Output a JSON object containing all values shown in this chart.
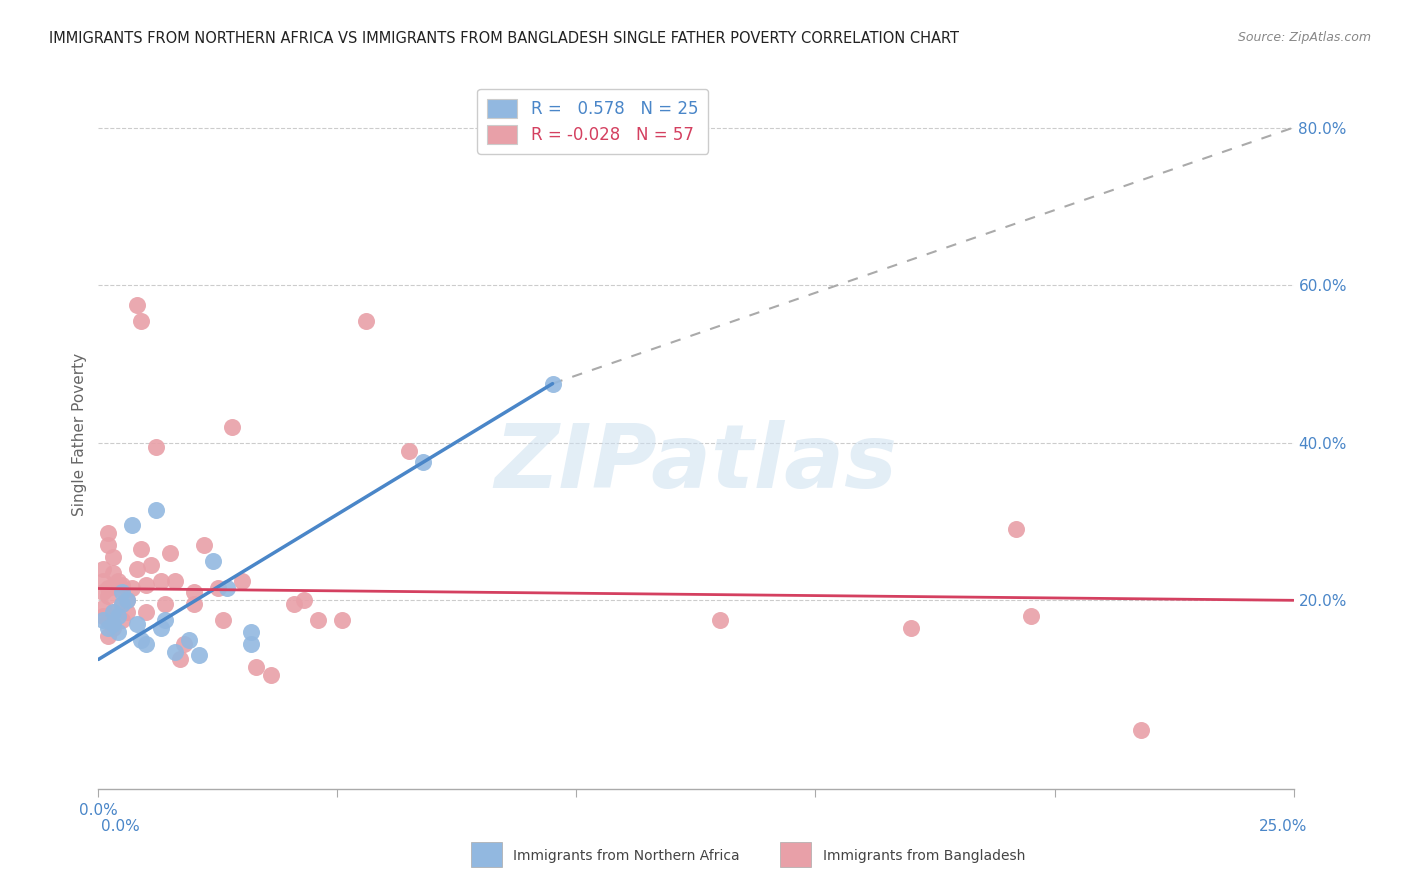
{
  "title": "IMMIGRANTS FROM NORTHERN AFRICA VS IMMIGRANTS FROM BANGLADESH SINGLE FATHER POVERTY CORRELATION CHART",
  "source": "Source: ZipAtlas.com",
  "ylabel": "Single Father Poverty",
  "right_ytick_labels": [
    "20.0%",
    "40.0%",
    "60.0%",
    "80.0%"
  ],
  "right_ytick_vals": [
    0.2,
    0.4,
    0.6,
    0.8
  ],
  "xlim": [
    0.0,
    0.25
  ],
  "ylim": [
    -0.04,
    0.86
  ],
  "blue_R": "0.578",
  "blue_N": "25",
  "pink_R": "-0.028",
  "pink_N": "57",
  "blue_color": "#92b8e0",
  "pink_color": "#e8a0a8",
  "blue_line_color": "#4a86c8",
  "pink_line_color": "#d44060",
  "watermark": "ZIPatlas",
  "legend_label_blue": "Immigrants from Northern Africa",
  "legend_label_pink": "Immigrants from Bangladesh",
  "blue_points": [
    [
      0.001,
      0.175
    ],
    [
      0.002,
      0.165
    ],
    [
      0.003,
      0.185
    ],
    [
      0.003,
      0.17
    ],
    [
      0.004,
      0.16
    ],
    [
      0.004,
      0.18
    ],
    [
      0.005,
      0.195
    ],
    [
      0.005,
      0.21
    ],
    [
      0.006,
      0.2
    ],
    [
      0.007,
      0.295
    ],
    [
      0.008,
      0.17
    ],
    [
      0.009,
      0.15
    ],
    [
      0.01,
      0.145
    ],
    [
      0.012,
      0.315
    ],
    [
      0.013,
      0.165
    ],
    [
      0.014,
      0.175
    ],
    [
      0.016,
      0.135
    ],
    [
      0.019,
      0.15
    ],
    [
      0.021,
      0.13
    ],
    [
      0.024,
      0.25
    ],
    [
      0.027,
      0.215
    ],
    [
      0.032,
      0.16
    ],
    [
      0.032,
      0.145
    ],
    [
      0.068,
      0.375
    ],
    [
      0.095,
      0.475
    ]
  ],
  "pink_points": [
    [
      0.001,
      0.21
    ],
    [
      0.001,
      0.19
    ],
    [
      0.001,
      0.18
    ],
    [
      0.001,
      0.225
    ],
    [
      0.001,
      0.24
    ],
    [
      0.002,
      0.205
    ],
    [
      0.002,
      0.215
    ],
    [
      0.002,
      0.27
    ],
    [
      0.002,
      0.285
    ],
    [
      0.002,
      0.175
    ],
    [
      0.002,
      0.155
    ],
    [
      0.003,
      0.255
    ],
    [
      0.003,
      0.235
    ],
    [
      0.003,
      0.185
    ],
    [
      0.003,
      0.165
    ],
    [
      0.004,
      0.215
    ],
    [
      0.004,
      0.225
    ],
    [
      0.005,
      0.195
    ],
    [
      0.005,
      0.22
    ],
    [
      0.005,
      0.175
    ],
    [
      0.006,
      0.185
    ],
    [
      0.006,
      0.2
    ],
    [
      0.007,
      0.215
    ],
    [
      0.008,
      0.24
    ],
    [
      0.009,
      0.265
    ],
    [
      0.01,
      0.22
    ],
    [
      0.01,
      0.185
    ],
    [
      0.011,
      0.245
    ],
    [
      0.012,
      0.395
    ],
    [
      0.013,
      0.225
    ],
    [
      0.014,
      0.195
    ],
    [
      0.015,
      0.26
    ],
    [
      0.016,
      0.225
    ],
    [
      0.017,
      0.125
    ],
    [
      0.018,
      0.145
    ],
    [
      0.02,
      0.21
    ],
    [
      0.02,
      0.195
    ],
    [
      0.022,
      0.27
    ],
    [
      0.025,
      0.215
    ],
    [
      0.026,
      0.175
    ],
    [
      0.03,
      0.225
    ],
    [
      0.033,
      0.115
    ],
    [
      0.036,
      0.105
    ],
    [
      0.041,
      0.195
    ],
    [
      0.043,
      0.2
    ],
    [
      0.046,
      0.175
    ],
    [
      0.051,
      0.175
    ],
    [
      0.056,
      0.555
    ],
    [
      0.065,
      0.39
    ],
    [
      0.008,
      0.575
    ],
    [
      0.009,
      0.555
    ],
    [
      0.028,
      0.42
    ],
    [
      0.13,
      0.175
    ],
    [
      0.17,
      0.165
    ],
    [
      0.195,
      0.18
    ],
    [
      0.218,
      0.035
    ],
    [
      0.192,
      0.29
    ]
  ],
  "blue_solid_line": [
    [
      0.0,
      0.125
    ],
    [
      0.095,
      0.475
    ]
  ],
  "blue_dashed_line": [
    [
      0.095,
      0.475
    ],
    [
      0.25,
      0.8
    ]
  ],
  "pink_solid_line": [
    [
      0.0,
      0.215
    ],
    [
      0.25,
      0.2
    ]
  ],
  "xtick_positions": [
    0.0,
    0.05,
    0.1,
    0.15,
    0.2,
    0.25
  ],
  "grid_yvals": [
    0.2,
    0.4,
    0.6,
    0.8
  ]
}
